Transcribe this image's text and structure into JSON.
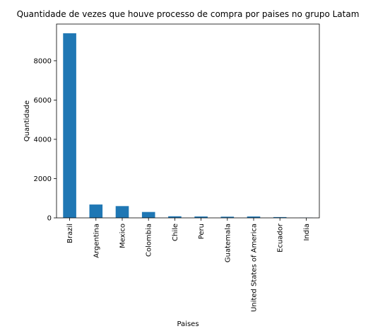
{
  "chart_data": {
    "type": "bar",
    "title": "Quantidade de vezes que houve processo de compra por paises no grupo Latam",
    "xlabel": "Paises",
    "ylabel": "Quantidade",
    "categories": [
      "Brazil",
      "Argentina",
      "Mexico",
      "Colombia",
      "Chile",
      "Peru",
      "Guatemala",
      "United States of America",
      "Ecuador",
      "India"
    ],
    "values": [
      9400,
      680,
      600,
      300,
      80,
      70,
      60,
      70,
      40,
      10
    ],
    "yticks": [
      0,
      2000,
      4000,
      6000,
      8000
    ],
    "ylim": [
      0,
      9870
    ],
    "grid": false,
    "legend": "none",
    "colors": {
      "bar": "#1f77b4",
      "axis": "#000000",
      "background": "#ffffff"
    }
  }
}
